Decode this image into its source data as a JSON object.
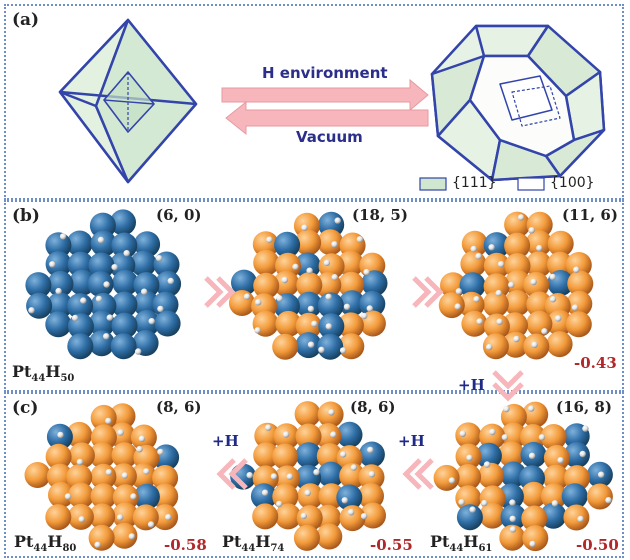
{
  "panel_a": {
    "label": "(a)",
    "arrow_forward_label": "H environment",
    "arrow_back_label": "Vacuum",
    "legend": {
      "item_111": "{111}",
      "item_100": "{100}"
    }
  },
  "panel_b": {
    "label": "(b)",
    "clusters": [
      {
        "coord": "(6, 0)",
        "formula_base": "Pt",
        "formula_sub1": "44",
        "formula_h": "H",
        "formula_sub2": "50"
      },
      {
        "coord": "(18, 5)"
      },
      {
        "coord": "(11, 6)",
        "energy": "-0.43"
      }
    ],
    "down_label": "+H"
  },
  "panel_c": {
    "label": "(c)",
    "clusters": [
      {
        "coord": "(8, 6)",
        "formula_base": "Pt",
        "formula_sub1": "44",
        "formula_h": "H",
        "formula_sub2": "80",
        "energy": "-0.58"
      },
      {
        "coord": "(8, 6)",
        "formula_base": "Pt",
        "formula_sub1": "44",
        "formula_h": "H",
        "formula_sub2": "74",
        "energy": "-0.55"
      },
      {
        "coord": "(16, 8)",
        "formula_base": "Pt",
        "formula_sub1": "44",
        "formula_h": "H",
        "formula_sub2": "61",
        "energy": "-0.50"
      }
    ],
    "plus_h_left": "+H",
    "plus_h_right": "+H"
  },
  "colors": {
    "frame_blue": "#3344aa",
    "face_111": "#cfe6cf",
    "pt_blue": "#2f6ea6",
    "pt_orange": "#f29a3a",
    "arrow_pink": "#f6b6bb",
    "energy_red": "#b0282b"
  }
}
